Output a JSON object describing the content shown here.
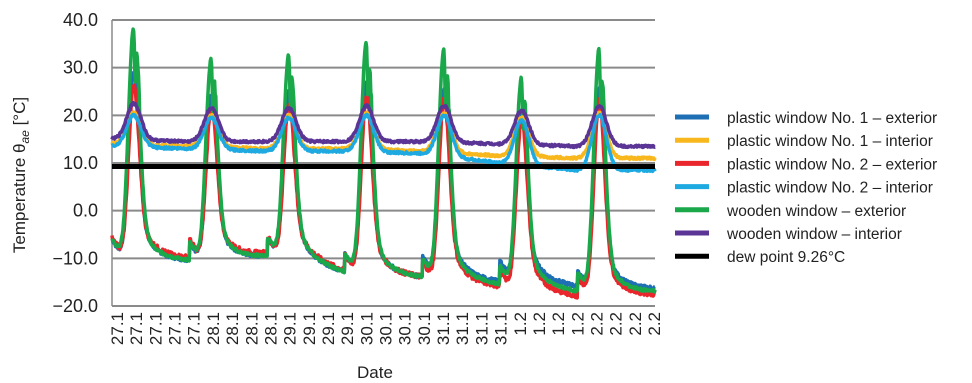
{
  "chart_data": {
    "type": "line",
    "xlabel": "Date",
    "ylabel_prefix": "Temperature θ",
    "ylabel_sub": "ae",
    "ylabel_suffix": " [°C]",
    "ylim": [
      -20,
      40
    ],
    "yticks": [
      40,
      30,
      20,
      10,
      0,
      -10,
      -20
    ],
    "ytick_labels": [
      "40.0",
      "30.0",
      "20.0",
      "10.0",
      "0.0",
      "−10.0",
      "−20.0"
    ],
    "x_tick_labels": [
      "27.1",
      "27.1",
      "27.1",
      "27.1",
      "27.1",
      "28.1",
      "28.1",
      "28.1",
      "28.1",
      "29.1",
      "29.1",
      "29.1",
      "29.1",
      "30.1",
      "30.1",
      "30.1",
      "30.1",
      "31.1",
      "31.1",
      "31.1",
      "31.1",
      "1.2",
      "1.2",
      "1.2",
      "1.2",
      "2.2",
      "2.2",
      "2.2",
      "2.2"
    ],
    "x_range_days": [
      0,
      7
    ],
    "grid": "horizontal",
    "legend_position": "right",
    "daily_peaks": {
      "wooden_exterior": [
        38.5,
        32.0,
        33.0,
        35.5,
        34.0,
        28.0,
        34.0
      ],
      "wooden_interior": [
        22.5,
        21.5,
        21.5,
        22.0,
        22.0,
        21.0,
        22.0
      ],
      "exterior_minimum": [
        -10.0,
        -10.5,
        -9.5,
        -13.0,
        -14.0,
        -15.5,
        -17.0
      ]
    },
    "series": [
      {
        "name": "plastic window No. 1 – exterior",
        "color": "#1f6fb4",
        "kind": "exterior",
        "night_shift": [
          0,
          0,
          0,
          0,
          0.5,
          1.0,
          0.6
        ],
        "peak_ratio": 0.55,
        "noise": 0.4
      },
      {
        "name": "plastic window No. 1 – interior",
        "color": "#f8b81d",
        "kind": "interior",
        "base": [
          14.0,
          13.5,
          13.0,
          13.0,
          12.5,
          11.5,
          11.0
        ],
        "peak": [
          20.5,
          20.0,
          20.0,
          20.5,
          20.5,
          19.5,
          20.5
        ]
      },
      {
        "name": "plastic window No. 2 – exterior",
        "color": "#e8262b",
        "kind": "exterior",
        "night_shift": [
          0.5,
          0.5,
          0.3,
          0,
          -0.5,
          -1.0,
          -0.6
        ],
        "peak_ratio": 0.42,
        "noise": 0.5
      },
      {
        "name": "plastic window No. 2 – interior",
        "color": "#1ea9e1",
        "kind": "interior",
        "base": [
          13.5,
          13.0,
          12.5,
          12.5,
          12.0,
          10.0,
          8.5
        ],
        "peak": [
          20.0,
          19.5,
          19.5,
          20.0,
          20.0,
          19.0,
          20.0
        ]
      },
      {
        "name": "wooden window – exterior",
        "color": "#1aa84a",
        "kind": "exterior",
        "night_shift": [
          0,
          0,
          0,
          0,
          0,
          0,
          0
        ],
        "peak_ratio": 1.0,
        "noise": 0.3
      },
      {
        "name": "wooden window – interior",
        "color": "#5b3595",
        "kind": "interior",
        "base": [
          15.0,
          14.5,
          14.5,
          14.5,
          14.5,
          14.0,
          13.5
        ],
        "peak": [
          22.5,
          21.5,
          21.5,
          22.0,
          22.0,
          21.0,
          22.0
        ]
      },
      {
        "name": "dew point 9.26°C",
        "color": "#000000",
        "kind": "constant",
        "value": 9.26
      }
    ]
  }
}
